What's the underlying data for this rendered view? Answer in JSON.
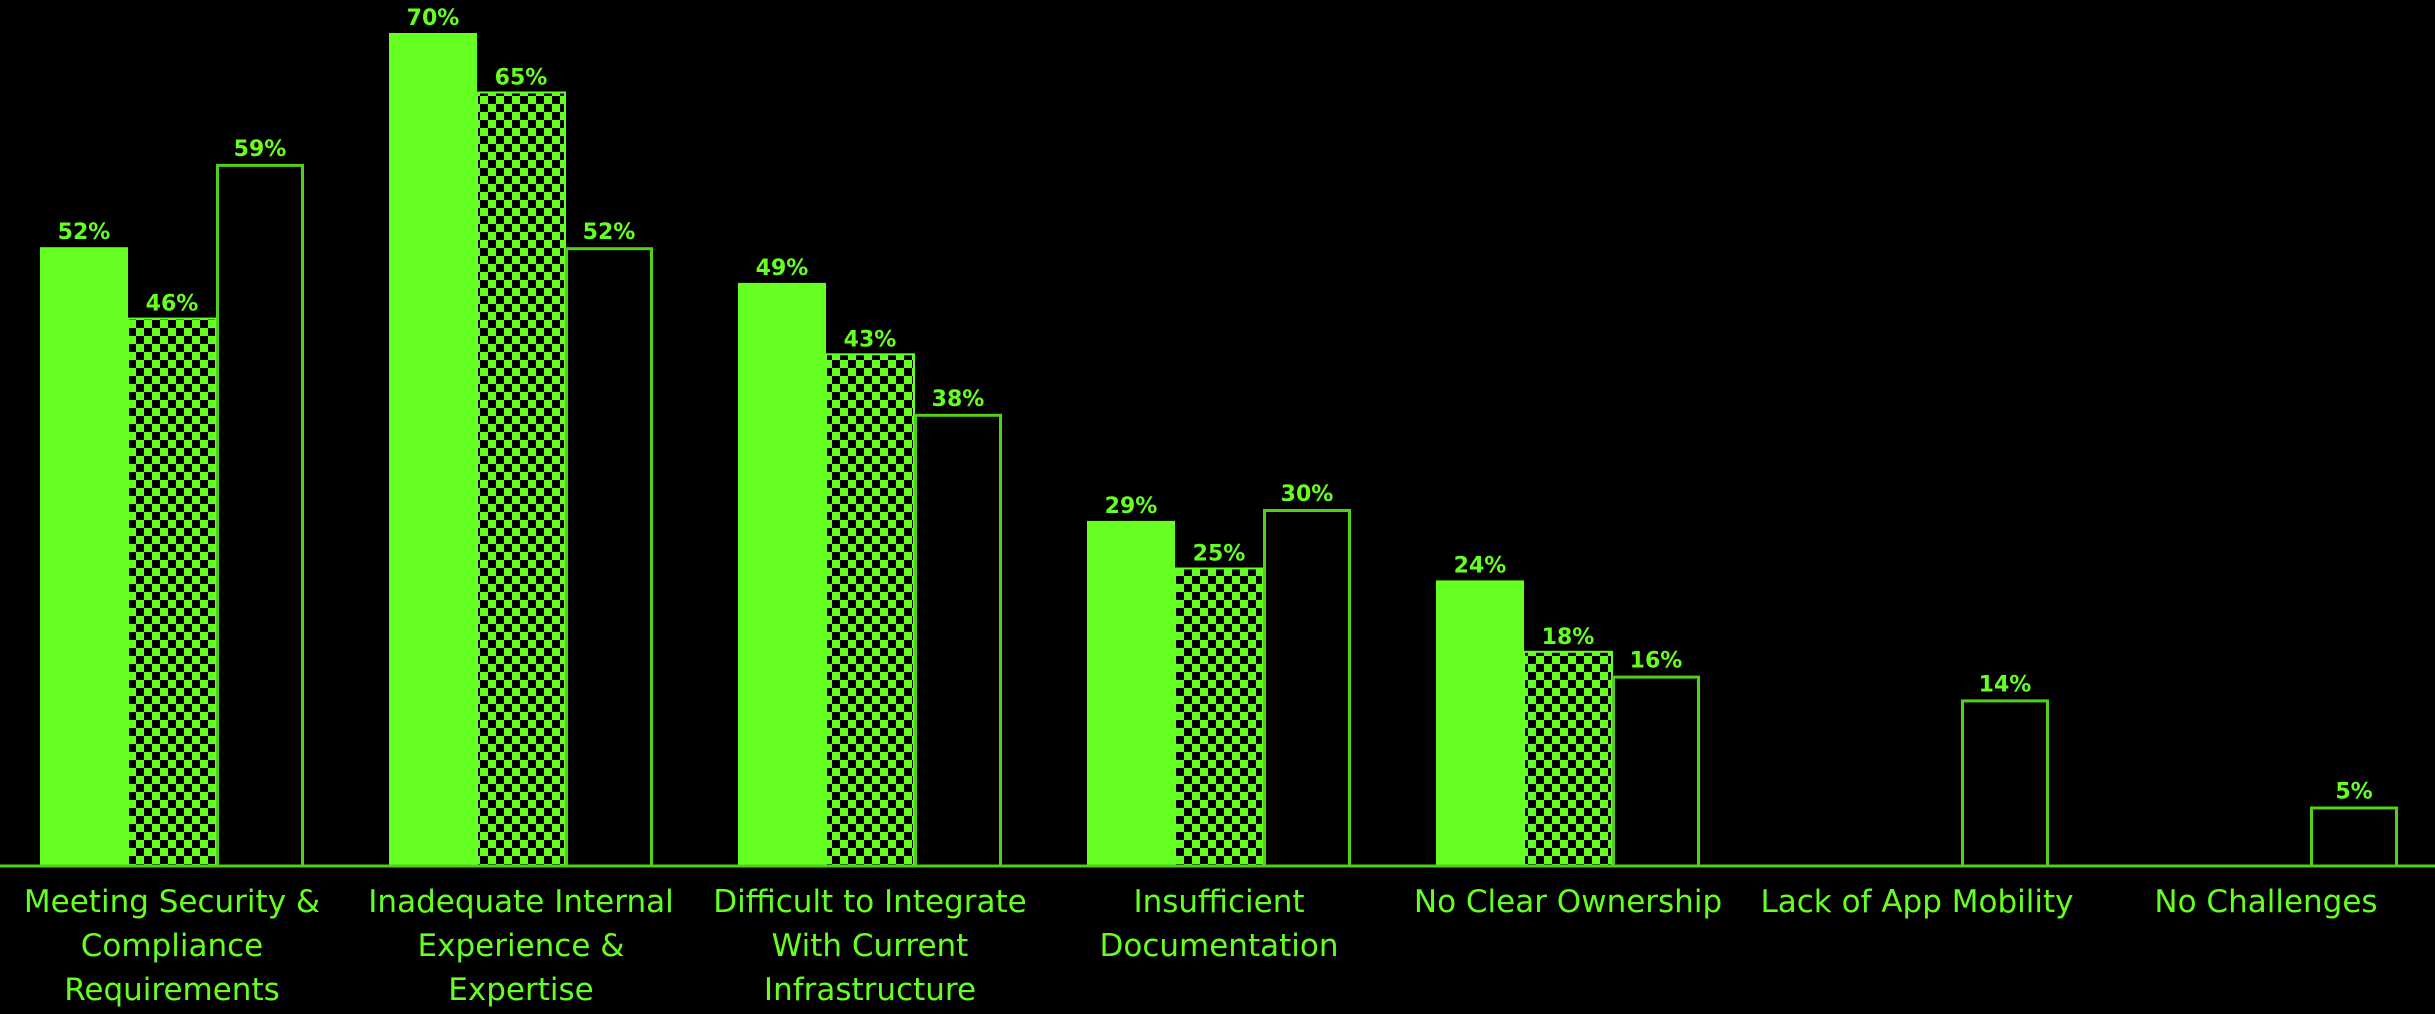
{
  "chart_data": {
    "type": "bar",
    "title": "",
    "xlabel": "",
    "ylabel": "",
    "ylim": [
      0,
      72
    ],
    "grid": false,
    "legend": "none",
    "colors": {
      "background": "#000000",
      "accent": "#66ff22",
      "outline": "#4fd11a"
    },
    "categories": [
      [
        "Meeting Security &",
        "Compliance",
        "Requirements"
      ],
      [
        "Inadequate  Internal",
        "Experience &",
        "Expertise"
      ],
      [
        "Difficult to Integrate",
        "With Current",
        "Infrastructure"
      ],
      [
        "Insufficient",
        "Documentation"
      ],
      [
        "No Clear Ownership"
      ],
      [
        "Lack of App Mobility"
      ],
      [
        "No Challenges"
      ]
    ],
    "series": [
      {
        "style": "solid",
        "values": [
          52,
          70,
          49,
          29,
          24,
          null,
          null
        ],
        "labels": [
          "52%",
          "70%",
          "49%",
          "29%",
          "24%",
          "",
          ""
        ]
      },
      {
        "style": "checkered",
        "values": [
          46,
          65,
          43,
          25,
          18,
          null,
          null
        ],
        "labels": [
          "46%",
          "65%",
          "43%",
          "25%",
          "18%",
          "",
          ""
        ]
      },
      {
        "style": "outline",
        "values": [
          59,
          52,
          38,
          30,
          16,
          14,
          5
        ],
        "labels": [
          "59%",
          "52%",
          "38%",
          "30%",
          "16%",
          "14%",
          "5%"
        ]
      }
    ]
  }
}
